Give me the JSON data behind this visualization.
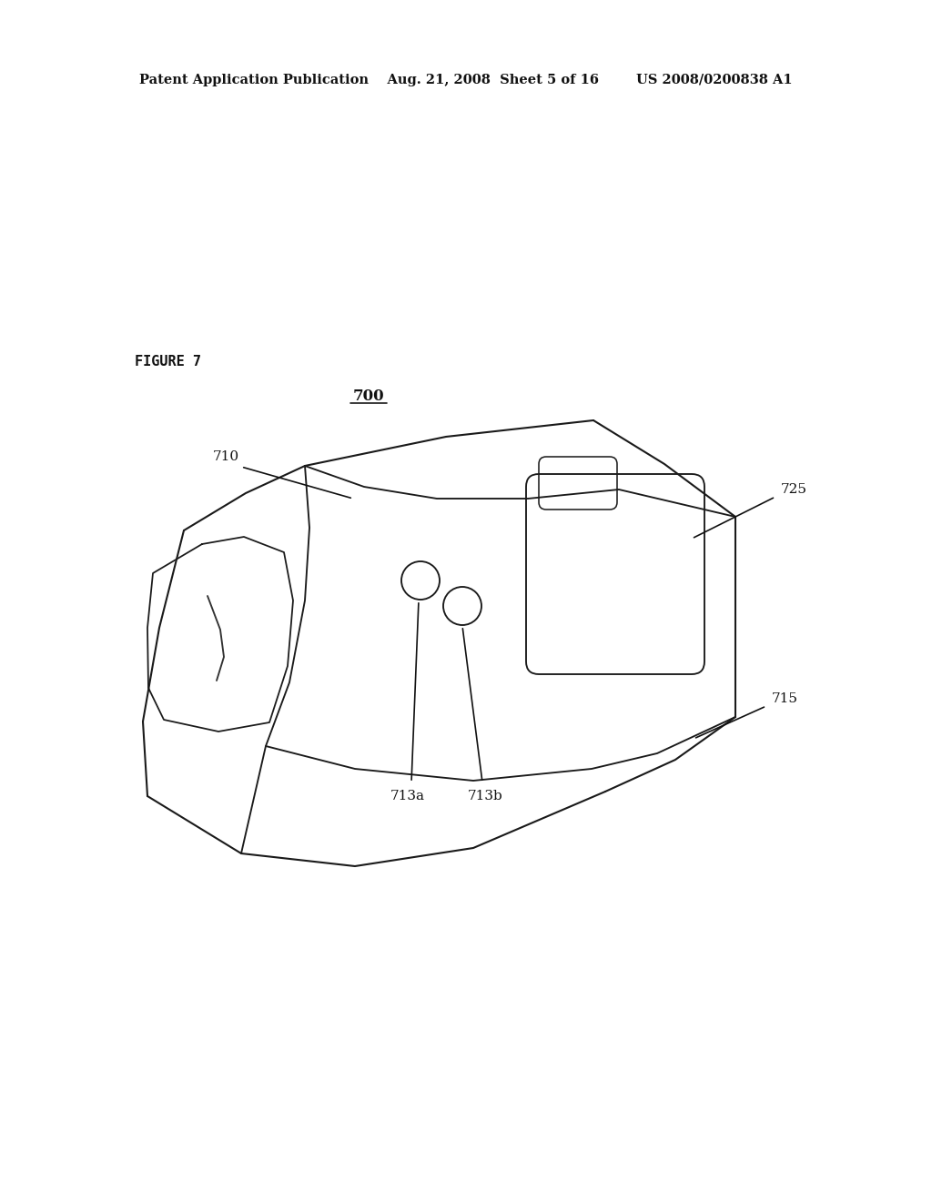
{
  "bg_color": "#ffffff",
  "line_color": "#1a1a1a",
  "line_width": 1.5,
  "header_text": "Patent Application Publication    Aug. 21, 2008  Sheet 5 of 16        US 2008/0200838 A1",
  "figure_label": "FIGURE 7",
  "ref_700": "700",
  "ref_710": "710",
  "ref_713a": "713a",
  "ref_713b": "713b",
  "ref_715": "715",
  "ref_725": "725"
}
